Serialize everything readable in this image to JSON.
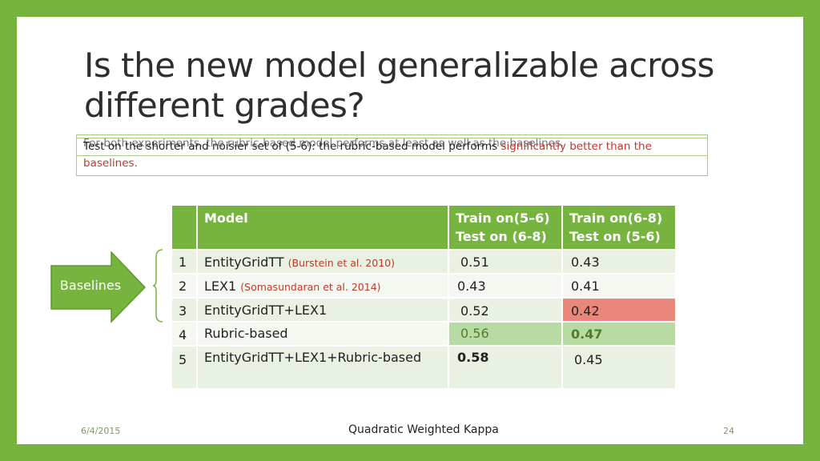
{
  "title": "Is the new model generalizable across different grades?",
  "notes": {
    "overlay_text_a": "For both experiments, the rubric-based model performs",
    "overlay_text_a_red": "at least as well as the baselines.",
    "line_prefix": "Test on the shorter and noisier set of (5-6): the rubric-based model performs",
    "line_red": "significantly",
    "line_suffix": "better than the",
    "line2": "baselines."
  },
  "table": {
    "headers": {
      "model": "Model",
      "col1_line1": "Train on(5–6)",
      "col1_line2": "Test on (6-8)",
      "col2_line1": "Train on(6-8)",
      "col2_line2": "Test on (5-6)"
    },
    "rows": [
      {
        "num": "1",
        "model": "EntityGridTT",
        "cite": "(Burstein et al. 2010)",
        "v1": "0.51",
        "v2": "0.43"
      },
      {
        "num": "2",
        "model": "LEX1",
        "cite": "(Somasundaran et al. 2014)",
        "v1": "0.43",
        "v2": "0.41"
      },
      {
        "num": "3",
        "model": "EntityGridTT+LEX1",
        "cite": "",
        "v1": "0.52",
        "v2": "0.42"
      },
      {
        "num": "4",
        "model": "Rubric-based",
        "cite": "",
        "v1": "0.56",
        "v2": "0.47"
      },
      {
        "num": "5",
        "model": "EntityGridTT+LEX1+Rubric-based",
        "cite": "",
        "v1": "0.58",
        "v2": "0.45"
      }
    ]
  },
  "baselines_label": "Baselines",
  "footer": {
    "date": "6/4/2015",
    "label": "Quadratic Weighted Kappa",
    "page": "24"
  },
  "colors": {
    "frame": "#76b43f",
    "highlight_bad": "#e8877a",
    "highlight_good": "#b7dba3",
    "accent_red": "#c0392b"
  }
}
